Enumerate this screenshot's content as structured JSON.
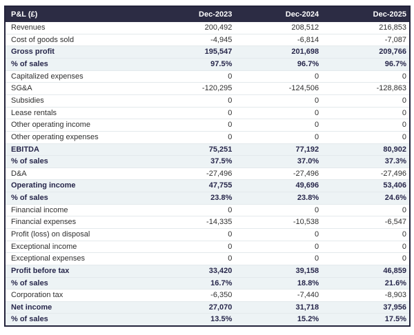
{
  "chart_data": {
    "type": "table",
    "title": "P&L (£)",
    "header": {
      "label": "P&L (£)",
      "columns": [
        "Dec-2023",
        "Dec-2024",
        "Dec-2025"
      ]
    },
    "rows": [
      {
        "label": "Revenues",
        "values": [
          "200,492",
          "208,512",
          "216,853"
        ],
        "emphasis": false
      },
      {
        "label": "Cost of goods sold",
        "values": [
          "-4,945",
          "-6,814",
          "-7,087"
        ],
        "emphasis": false
      },
      {
        "label": "Gross profit",
        "values": [
          "195,547",
          "201,698",
          "209,766"
        ],
        "emphasis": true
      },
      {
        "label": "% of sales",
        "values": [
          "97.5%",
          "96.7%",
          "96.7%"
        ],
        "emphasis": true
      },
      {
        "label": "Capitalized expenses",
        "values": [
          "0",
          "0",
          "0"
        ],
        "emphasis": false
      },
      {
        "label": "SG&A",
        "values": [
          "-120,295",
          "-124,506",
          "-128,863"
        ],
        "emphasis": false
      },
      {
        "label": "Subsidies",
        "values": [
          "0",
          "0",
          "0"
        ],
        "emphasis": false
      },
      {
        "label": "Lease rentals",
        "values": [
          "0",
          "0",
          "0"
        ],
        "emphasis": false
      },
      {
        "label": "Other operating income",
        "values": [
          "0",
          "0",
          "0"
        ],
        "emphasis": false
      },
      {
        "label": "Other operating expenses",
        "values": [
          "0",
          "0",
          "0"
        ],
        "emphasis": false
      },
      {
        "label": "EBITDA",
        "values": [
          "75,251",
          "77,192",
          "80,902"
        ],
        "emphasis": true
      },
      {
        "label": "% of sales",
        "values": [
          "37.5%",
          "37.0%",
          "37.3%"
        ],
        "emphasis": true
      },
      {
        "label": "D&A",
        "values": [
          "-27,496",
          "-27,496",
          "-27,496"
        ],
        "emphasis": false
      },
      {
        "label": "Operating income",
        "values": [
          "47,755",
          "49,696",
          "53,406"
        ],
        "emphasis": true
      },
      {
        "label": "% of sales",
        "values": [
          "23.8%",
          "23.8%",
          "24.6%"
        ],
        "emphasis": true
      },
      {
        "label": "Financial income",
        "values": [
          "0",
          "0",
          "0"
        ],
        "emphasis": false
      },
      {
        "label": "Financial expenses",
        "values": [
          "-14,335",
          "-10,538",
          "-6,547"
        ],
        "emphasis": false
      },
      {
        "label": "Profit (loss) on disposal",
        "values": [
          "0",
          "0",
          "0"
        ],
        "emphasis": false
      },
      {
        "label": "Exceptional income",
        "values": [
          "0",
          "0",
          "0"
        ],
        "emphasis": false
      },
      {
        "label": "Exceptional expenses",
        "values": [
          "0",
          "0",
          "0"
        ],
        "emphasis": false
      },
      {
        "label": "Profit before tax",
        "values": [
          "33,420",
          "39,158",
          "46,859"
        ],
        "emphasis": true
      },
      {
        "label": "% of sales",
        "values": [
          "16.7%",
          "18.8%",
          "21.6%"
        ],
        "emphasis": true
      },
      {
        "label": "Corporation tax",
        "values": [
          "-6,350",
          "-7,440",
          "-8,903"
        ],
        "emphasis": false
      },
      {
        "label": "Net income",
        "values": [
          "27,070",
          "31,718",
          "37,956"
        ],
        "emphasis": true
      },
      {
        "label": "% of sales",
        "values": [
          "13.5%",
          "15.2%",
          "17.5%"
        ],
        "emphasis": true
      }
    ]
  },
  "colors": {
    "header_bg": "#2c2c44",
    "header_text": "#ffffff",
    "highlight_row_bg": "#edf3f5",
    "emphasis_text": "#26264a",
    "body_text": "#2e2e2e",
    "grid_line": "#e3e9ec",
    "outer_border": "#23233b",
    "page_bg": "#ffffff"
  }
}
